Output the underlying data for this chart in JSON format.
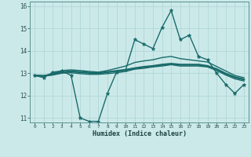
{
  "title": "",
  "xlabel": "Humidex (Indice chaleur)",
  "ylabel": "",
  "xlim": [
    -0.5,
    23.5
  ],
  "ylim": [
    10.8,
    16.2
  ],
  "yticks": [
    11,
    12,
    13,
    14,
    15,
    16
  ],
  "xticks": [
    0,
    1,
    2,
    3,
    4,
    5,
    6,
    7,
    8,
    9,
    10,
    11,
    12,
    13,
    14,
    15,
    16,
    17,
    18,
    19,
    20,
    21,
    22,
    23
  ],
  "background_color": "#cce9e9",
  "grid_color": "#aad4d4",
  "line_color": "#1a6b6b",
  "series": [
    {
      "x": [
        0,
        1,
        2,
        3,
        4,
        5,
        6,
        7,
        8,
        9,
        10,
        11,
        12,
        13,
        14,
        15,
        16,
        17,
        18,
        19,
        20,
        21,
        22,
        23
      ],
      "y": [
        12.9,
        12.8,
        13.05,
        13.1,
        12.9,
        11.0,
        10.85,
        10.85,
        12.1,
        13.05,
        13.15,
        14.5,
        14.3,
        14.1,
        15.05,
        15.8,
        14.5,
        14.7,
        13.75,
        13.6,
        13.0,
        12.5,
        12.1,
        12.5
      ],
      "marker": "*",
      "lw": 1.0,
      "ms": 3.5
    },
    {
      "x": [
        0,
        1,
        2,
        3,
        4,
        5,
        6,
        7,
        8,
        9,
        10,
        11,
        12,
        13,
        14,
        15,
        16,
        17,
        18,
        19,
        20,
        21,
        22,
        23
      ],
      "y": [
        12.9,
        12.88,
        12.95,
        13.05,
        13.08,
        13.05,
        13.02,
        13.0,
        13.05,
        13.1,
        13.15,
        13.22,
        13.28,
        13.32,
        13.38,
        13.42,
        13.38,
        13.38,
        13.38,
        13.32,
        13.18,
        12.98,
        12.82,
        12.72
      ],
      "marker": null,
      "lw": 1.8,
      "ms": 0
    },
    {
      "x": [
        0,
        1,
        2,
        3,
        4,
        5,
        6,
        7,
        8,
        9,
        10,
        11,
        12,
        13,
        14,
        15,
        16,
        17,
        18,
        19,
        20,
        21,
        22,
        23
      ],
      "y": [
        12.9,
        12.88,
        12.98,
        13.12,
        13.15,
        13.12,
        13.08,
        13.05,
        13.12,
        13.22,
        13.32,
        13.48,
        13.55,
        13.6,
        13.7,
        13.75,
        13.65,
        13.6,
        13.55,
        13.5,
        13.3,
        13.1,
        12.9,
        12.8
      ],
      "marker": null,
      "lw": 1.0,
      "ms": 0
    },
    {
      "x": [
        0,
        1,
        2,
        3,
        4,
        5,
        6,
        7,
        8,
        9,
        10,
        11,
        12,
        13,
        14,
        15,
        16,
        17,
        18,
        19,
        20,
        21,
        22,
        23
      ],
      "y": [
        12.9,
        12.88,
        12.92,
        13.0,
        13.02,
        12.98,
        12.95,
        12.95,
        12.98,
        13.02,
        13.08,
        13.18,
        13.22,
        13.28,
        13.32,
        13.38,
        13.32,
        13.32,
        13.32,
        13.28,
        13.12,
        12.92,
        12.75,
        12.65
      ],
      "marker": null,
      "lw": 1.0,
      "ms": 0
    }
  ]
}
